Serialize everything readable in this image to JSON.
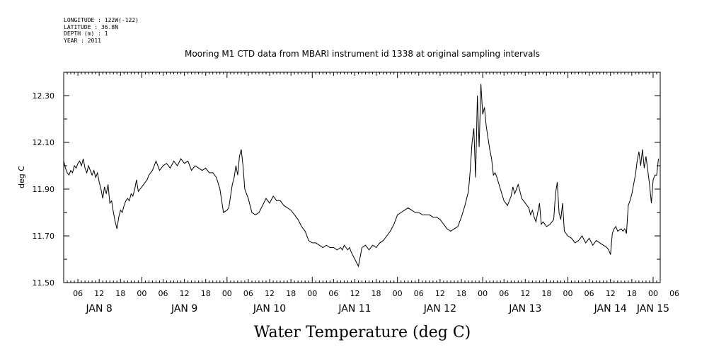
{
  "header": {
    "meta_lines": [
      "LONGITUDE : 122W(-122)",
      "LATITUDE : 36.8N",
      "DEPTH (m) : 1",
      "YEAR : 2011"
    ],
    "title": "Mooring M1 CTD data from MBARI instrument id 1338 at original sampling intervals"
  },
  "footer": {
    "label": "Water Temperature (deg C)"
  },
  "chart_data": {
    "type": "line",
    "title": "Mooring M1 CTD data from MBARI instrument id 1338 at original sampling intervals",
    "xlabel": "",
    "ylabel": "deg C",
    "ylim": [
      11.5,
      12.4
    ],
    "xlim_hours": [
      2,
      170
    ],
    "grid": false,
    "hour_tick_labels": [
      "06",
      "12",
      "18",
      "00",
      "06",
      "12",
      "18",
      "00",
      "06",
      "12",
      "18",
      "00",
      "06",
      "12",
      "18",
      "00",
      "06",
      "12",
      "18",
      "00",
      "06",
      "12",
      "18",
      "00",
      "06",
      "12",
      "18",
      "00",
      "06"
    ],
    "day_labels": [
      {
        "label": "JAN  8",
        "hour": 12
      },
      {
        "label": "JAN  9",
        "hour": 36
      },
      {
        "label": "JAN 10",
        "hour": 60
      },
      {
        "label": "JAN 11",
        "hour": 84
      },
      {
        "label": "JAN 12",
        "hour": 108
      },
      {
        "label": "JAN 13",
        "hour": 132
      },
      {
        "label": "JAN 14",
        "hour": 156
      },
      {
        "label": "JAN 15",
        "hour": 168
      }
    ],
    "y_ticks": [
      11.5,
      11.7,
      11.9,
      12.1,
      12.3
    ],
    "y_tick_labels": [
      "11.50",
      "11.70",
      "11.90",
      "12.10",
      "12.30"
    ],
    "series": [
      {
        "x": [
          2.0,
          2.5,
          3.0,
          3.5,
          4.0,
          4.5,
          5.0,
          5.5,
          6.0,
          6.5,
          7.0,
          7.5,
          8.0,
          8.5,
          9.0,
          9.5,
          10.0,
          10.5,
          11.0,
          11.5,
          12.0,
          12.5,
          13.0,
          13.5,
          14.0,
          14.5,
          15.0,
          15.5,
          16.0,
          16.5,
          17.0,
          17.5,
          18.0,
          18.5,
          19.0,
          19.5,
          20.0,
          20.5,
          21.0,
          21.5,
          22.0,
          22.5,
          23.0,
          23.5,
          24.0,
          24.5,
          25.0,
          25.5,
          26.0,
          27.0,
          28.0,
          29.0,
          30.0,
          31.0,
          32.0,
          33.0,
          34.0,
          35.0,
          36.0,
          37.0,
          38.0,
          39.0,
          40.0,
          41.0,
          42.0,
          43.0,
          44.0,
          45.0,
          46.0,
          47.0,
          48.0,
          48.5,
          49.0,
          49.5,
          50.0,
          50.5,
          51.0,
          51.5,
          52.0,
          52.5,
          53.0,
          54.0,
          55.0,
          56.0,
          57.0,
          58.0,
          59.0,
          60.0,
          61.0,
          62.0,
          63.0,
          64.0,
          65.0,
          66.0,
          67.0,
          68.0,
          69.0,
          70.0,
          71.0,
          72.0,
          73.0,
          74.0,
          75.0,
          76.0,
          77.0,
          78.0,
          79.0,
          80.0,
          80.5,
          81.0,
          81.5,
          82.0,
          82.5,
          83.0,
          84.0,
          85.0,
          86.0,
          87.0,
          88.0,
          89.0,
          90.0,
          91.0,
          92.0,
          93.0,
          94.0,
          95.0,
          96.0,
          97.0,
          98.0,
          99.0,
          100.0,
          101.0,
          102.0,
          103.0,
          104.0,
          105.0,
          106.0,
          107.0,
          108.0,
          109.0,
          110.0,
          111.0,
          112.0,
          113.0,
          114.0,
          115.0,
          116.0,
          116.5,
          117.0,
          117.5,
          118.0,
          118.5,
          119.0,
          119.5,
          120.0,
          120.5,
          121.0,
          121.5,
          122.0,
          122.5,
          123.0,
          123.5,
          124.0,
          125.0,
          126.0,
          127.0,
          127.5,
          128.0,
          128.5,
          129.0,
          130.0,
          131.0,
          132.0,
          133.0,
          133.5,
          134.0,
          134.5,
          135.0,
          136.0,
          136.5,
          137.0,
          138.0,
          139.0,
          140.0,
          140.5,
          141.0,
          141.5,
          142.0,
          142.5,
          143.0,
          144.0,
          145.0,
          146.0,
          147.0,
          148.0,
          149.0,
          150.0,
          151.0,
          152.0,
          153.0,
          154.0,
          155.0,
          155.5,
          156.0,
          156.5,
          157.0,
          157.5,
          158.0,
          159.0,
          159.5,
          160.0,
          160.5,
          161.0,
          161.5,
          162.0,
          162.5,
          163.0,
          163.5,
          164.0,
          164.5,
          165.0,
          165.5,
          166.0,
          166.5,
          167.0,
          167.5,
          168.0,
          168.5,
          169.0,
          169.5
        ],
        "y": [
          12.02,
          11.99,
          11.97,
          11.96,
          11.98,
          11.97,
          12.0,
          11.99,
          12.01,
          12.02,
          12.0,
          12.03,
          11.99,
          11.97,
          12.0,
          11.98,
          11.96,
          11.98,
          11.95,
          11.97,
          11.93,
          11.9,
          11.86,
          11.91,
          11.88,
          11.92,
          11.84,
          11.85,
          11.8,
          11.76,
          11.73,
          11.78,
          11.81,
          11.8,
          11.83,
          11.85,
          11.86,
          11.85,
          11.88,
          11.87,
          11.9,
          11.94,
          11.89,
          11.9,
          11.91,
          11.92,
          11.93,
          11.94,
          11.96,
          11.98,
          12.02,
          11.98,
          12.0,
          12.01,
          11.99,
          12.02,
          12.0,
          12.03,
          12.01,
          12.02,
          11.98,
          12.0,
          11.99,
          11.98,
          11.99,
          11.97,
          11.97,
          11.95,
          11.9,
          11.8,
          11.81,
          11.82,
          11.87,
          11.92,
          11.95,
          12.0,
          11.96,
          12.04,
          12.07,
          12.0,
          11.9,
          11.86,
          11.8,
          11.79,
          11.8,
          11.83,
          11.86,
          11.84,
          11.87,
          11.85,
          11.85,
          11.83,
          11.82,
          11.81,
          11.79,
          11.77,
          11.74,
          11.72,
          11.68,
          11.67,
          11.67,
          11.66,
          11.65,
          11.66,
          11.65,
          11.65,
          11.64,
          11.65,
          11.64,
          11.66,
          11.65,
          11.64,
          11.65,
          11.63,
          11.6,
          11.57,
          11.65,
          11.66,
          11.64,
          11.66,
          11.65,
          11.67,
          11.68,
          11.7,
          11.72,
          11.75,
          11.79,
          11.8,
          11.81,
          11.82,
          11.81,
          11.8,
          11.8,
          11.79,
          11.79,
          11.79,
          11.78,
          11.78,
          11.77,
          11.75,
          11.73,
          11.72,
          11.73,
          11.74,
          11.78,
          11.83,
          11.89,
          11.98,
          12.1,
          12.16,
          11.95,
          12.3,
          12.08,
          12.35,
          12.22,
          12.25,
          12.17,
          12.12,
          12.07,
          12.03,
          11.96,
          11.97,
          11.95,
          11.9,
          11.85,
          11.83,
          11.85,
          11.87,
          11.91,
          11.88,
          11.92,
          11.86,
          11.84,
          11.82,
          11.79,
          11.81,
          11.78,
          11.76,
          11.84,
          11.75,
          11.76,
          11.74,
          11.75,
          11.77,
          11.88,
          11.93,
          11.8,
          11.77,
          11.84,
          11.72,
          11.7,
          11.69,
          11.67,
          11.68,
          11.7,
          11.67,
          11.69,
          11.66,
          11.68,
          11.67,
          11.66,
          11.65,
          11.64,
          11.62,
          11.71,
          11.73,
          11.74,
          11.72,
          11.73,
          11.72,
          11.73,
          11.71,
          11.83,
          11.85,
          11.88,
          11.92,
          11.96,
          12.02,
          12.06,
          12.0,
          12.07,
          11.99,
          12.04,
          11.98,
          11.92,
          11.84,
          11.94,
          11.96,
          11.96,
          12.03
        ]
      }
    ]
  }
}
